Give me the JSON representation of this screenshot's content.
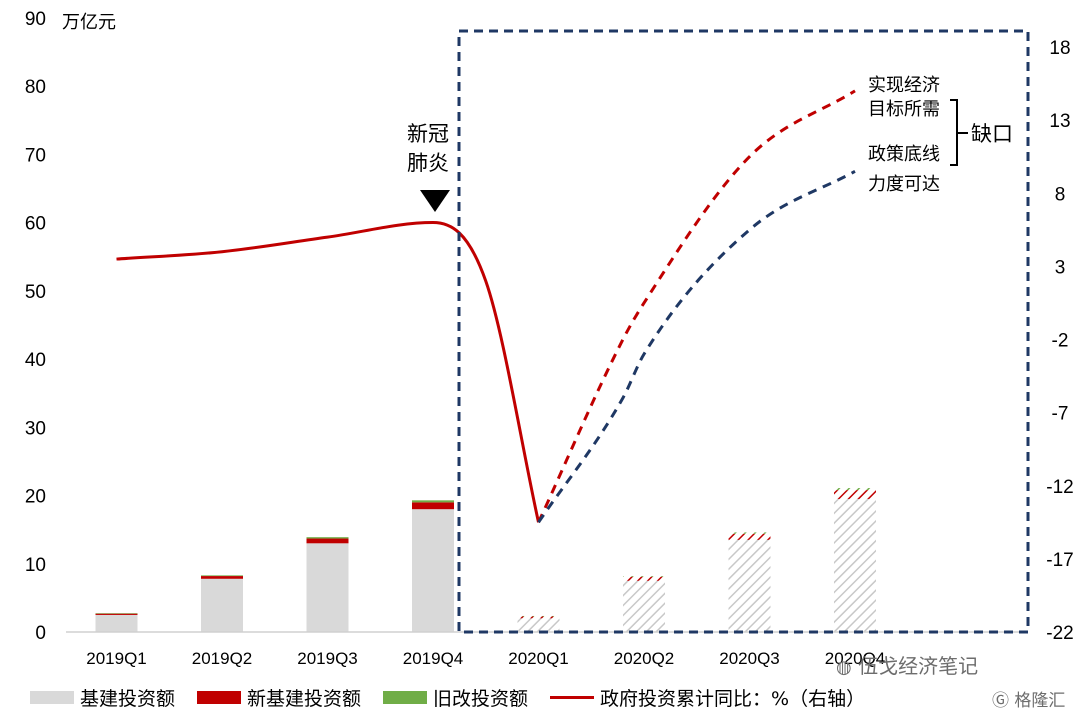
{
  "chart_data": {
    "type": "bar+line",
    "left_axis_unit": "万亿元",
    "left_ticks": [
      "0",
      "10",
      "20",
      "30",
      "40",
      "50",
      "60",
      "70",
      "80",
      "90"
    ],
    "right_ticks": [
      "18",
      "13",
      "8",
      "3",
      "-2",
      "-7",
      "-12",
      "-17",
      "-22"
    ],
    "ylim_left": [
      0,
      90
    ],
    "ylim_right": [
      -22,
      18
    ],
    "categories": [
      "2019Q1",
      "2019Q2",
      "2019Q3",
      "2019Q4",
      "2020Q1",
      "2020Q2",
      "2020Q3",
      "2020Q4"
    ],
    "bar_series": [
      {
        "name": "基建投资额",
        "color": "#d9d9d9",
        "values": [
          2.5,
          7.8,
          13.0,
          18.0,
          2.0,
          7.5,
          13.5,
          19.5
        ]
      },
      {
        "name": "新基建投资额",
        "color": "#c00000",
        "values": [
          0.2,
          0.4,
          0.7,
          1.0,
          0.3,
          0.6,
          0.9,
          1.3
        ]
      },
      {
        "name": "旧改投资额",
        "color": "#70ad47",
        "values": [
          0.05,
          0.1,
          0.2,
          0.3,
          0.05,
          0.1,
          0.2,
          0.3
        ]
      }
    ],
    "forecast_categories": [
      "2020Q1",
      "2020Q2",
      "2020Q3",
      "2020Q4"
    ],
    "line_series": [
      {
        "name": "政府投资累计同比：%（右轴）",
        "color": "#c00000",
        "x": [
          0,
          1,
          2,
          3,
          3.5,
          4
        ],
        "y": [
          3.5,
          4.0,
          5.0,
          6.0,
          2.0,
          -14.5
        ]
      },
      {
        "name": "实现经济目标所需",
        "color": "#c00000",
        "dashed": true,
        "x": [
          4,
          4.8,
          5,
          6,
          7
        ],
        "y": [
          -14.5,
          -2,
          0.5,
          10.5,
          15.0
        ]
      },
      {
        "name": "政策底线力度可达",
        "color": "#1f3864",
        "dashed": true,
        "x": [
          4,
          4.8,
          5,
          6,
          7
        ],
        "y": [
          -14.5,
          -6,
          -3,
          5.5,
          9.5
        ]
      }
    ],
    "annotations": {
      "event_line1": "新冠",
      "event_line2": "肺炎",
      "target_line1": "实现经济",
      "target_line2": "目标所需",
      "floor_line1": "政策底线",
      "floor_line2": "力度可达",
      "gap": "缺口"
    }
  },
  "legend": {
    "items": [
      {
        "label": "基建投资额",
        "color": "#d9d9d9",
        "kind": "box"
      },
      {
        "label": "新基建投资额",
        "color": "#c00000",
        "kind": "box"
      },
      {
        "label": "旧改投资额",
        "color": "#70ad47",
        "kind": "box"
      },
      {
        "label": "政府投资累计同比：%（右轴）",
        "color": "#c00000",
        "kind": "line"
      }
    ]
  },
  "watermark": {
    "wechat": "伍戈经济笔记",
    "brand": "格隆汇"
  }
}
